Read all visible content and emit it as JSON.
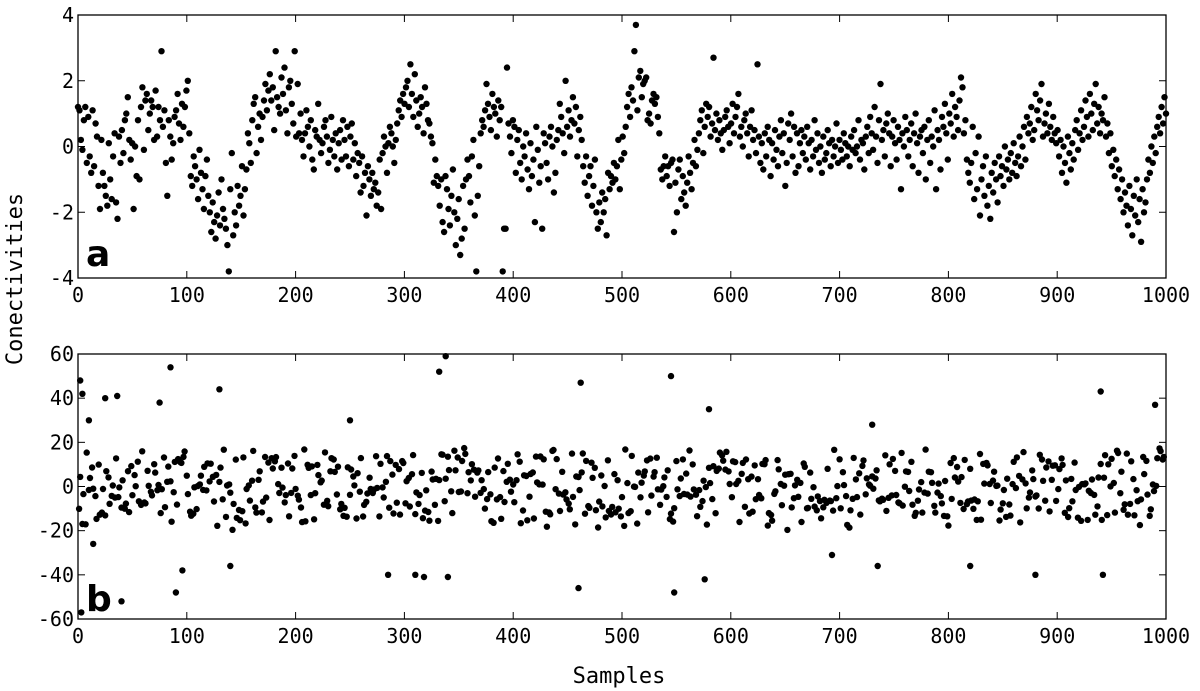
{
  "figure": {
    "ylabel": "Conectivities",
    "xlabel": "Samples"
  },
  "chart_data": [
    {
      "type": "scatter",
      "panel_label": "a",
      "xlim": [
        0,
        1000
      ],
      "ylim": [
        -4,
        4
      ],
      "x_ticks": [
        0,
        100,
        200,
        300,
        400,
        500,
        600,
        700,
        800,
        900,
        1000
      ],
      "y_ticks": [
        -4,
        -2,
        0,
        2,
        4
      ],
      "x_tick_labels": [
        "0",
        "100",
        "200",
        "300",
        "400",
        "500",
        "600",
        "700",
        "800",
        "900",
        "1000"
      ],
      "y_tick_labels": [
        "-4",
        "-2",
        "0",
        "2",
        "4"
      ],
      "grid": false,
      "marker_color": "#000000",
      "n_points": 1000,
      "points_y": [
        1.2,
        1.1,
        0.2,
        -0.1,
        0.8,
        1.2,
        -0.5,
        0.9,
        -0.3,
        -0.8,
        1.1,
        -0.6,
        0.7,
        0.3,
        -1.2,
        -1.9,
        0.2,
        -0.8,
        -1.2,
        -1.5,
        -1.8,
        0.1,
        -1.0,
        -1.6,
        -0.3,
        0.4,
        -1.7,
        -2.2,
        0.3,
        -0.5,
        0.5,
        -0.2,
        0.8,
        1.0,
        1.5,
        0.2,
        -0.4,
        0.1,
        -1.9,
        0.0,
        -0.9,
        0.8,
        -1.0,
        1.2,
        1.8,
        -0.1,
        1.4,
        1.6,
        0.5,
        1.0,
        1.4,
        1.2,
        0.2,
        1.7,
        0.3,
        1.2,
        0.8,
        2.9,
        0.6,
        1.1,
        -0.5,
        -1.5,
        0.8,
        0.3,
        -0.4,
        0.1,
        0.9,
        1.1,
        1.6,
        0.7,
        0.2,
        1.3,
        0.6,
        1.2,
        1.7,
        2.0,
        0.4,
        -0.9,
        -1.2,
        -0.3,
        -0.6,
        -1.0,
        -1.6,
        -0.1,
        -0.8,
        -1.3,
        -1.9,
        -0.9,
        -0.4,
        -1.5,
        -2.0,
        -2.6,
        -1.7,
        -2.3,
        -2.8,
        -2.1,
        -1.4,
        -2.4,
        -1.0,
        -1.9,
        -2.2,
        -2.5,
        -3.0,
        -3.8,
        -1.3,
        -0.2,
        -2.7,
        -2.0,
        -2.4,
        -1.2,
        -1.8,
        -1.5,
        -0.6,
        -2.1,
        -1.3,
        -0.7,
        0.4,
        0.1,
        -0.5,
        0.8,
        1.3,
        1.5,
        -0.2,
        0.6,
        1.0,
        0.2,
        0.9,
        1.4,
        1.9,
        1.1,
        1.7,
        2.2,
        1.4,
        1.8,
        0.5,
        2.9,
        1.5,
        1.2,
        1.0,
        2.1,
        1.6,
        2.4,
        1.1,
        0.4,
        1.8,
        2.0,
        1.3,
        0.7,
        2.9,
        0.3,
        1.9,
        0.4,
        1.0,
        0.2,
        -0.3,
        0.4,
        1.1,
        0.6,
        0.0,
        0.8,
        -0.4,
        -0.7,
        0.5,
        0.3,
        1.3,
        0.2,
        -0.2,
        0.1,
        0.6,
        0.8,
        0.3,
        -0.5,
        -0.1,
        0.9,
        0.2,
        -0.3,
        0.4,
        -0.7,
        0.1,
        0.5,
        -0.4,
        0.8,
        0.2,
        -0.3,
        0.6,
        -0.6,
        0.3,
        0.7,
        -0.4,
        0.1,
        -0.9,
        -0.2,
        -0.5,
        -1.4,
        -0.3,
        -1.2,
        -0.8,
        -2.1,
        -0.6,
        -1.0,
        -1.5,
        -0.8,
        -1.3,
        -1.1,
        -1.8,
        -1.4,
        -0.4,
        -1.9,
        -0.2,
        0.3,
        0.0,
        -0.8,
        0.1,
        0.6,
        0.4,
        0.0,
        -0.5,
        0.2,
        0.7,
        1.1,
        1.4,
        0.9,
        1.6,
        1.3,
        1.8,
        2.0,
        1.2,
        2.5,
        1.6,
        0.9,
        2.2,
        1.4,
        0.6,
        1.0,
        1.5,
        1.2,
        0.4,
        1.8,
        1.3,
        0.8,
        0.7,
        0.3,
        0.1,
        -1.1,
        -0.4,
        -0.9,
        -1.2,
        -1.8,
        -1.0,
        -2.3,
        -2.6,
        -0.9,
        -1.3,
        -1.9,
        -2.4,
        -1.5,
        -0.7,
        -2.0,
        -3.0,
        -2.2,
        -1.6,
        -3.3,
        -2.8,
        -1.2,
        -2.5,
        -1.0,
        -0.4,
        -0.9,
        -1.7,
        -0.3,
        0.2,
        -2.1,
        -3.8,
        -1.5,
        -0.6,
        0.4,
        0.8,
        0.6,
        1.1,
        1.9,
        1.3,
        0.9,
        0.5,
        1.6,
        1.2,
        1.0,
        0.3,
        1.4,
        0.8,
        1.2,
        -3.8,
        -2.5,
        -2.5,
        2.4,
        0.7,
        0.3,
        -0.2,
        0.8,
        0.6,
        -0.8,
        0.2,
        0.5,
        -0.5,
        -1.0,
        0.0,
        -0.3,
        0.4,
        -0.7,
        -1.3,
        0.1,
        -0.9,
        -0.4,
        -2.3,
        0.6,
        -0.1,
        -1.1,
        -0.6,
        -2.5,
        0.4,
        0.1,
        -0.5,
        -1.0,
        0.3,
        0.6,
        0.0,
        -1.4,
        -0.8,
        0.2,
        0.5,
        1.3,
        0.9,
        0.4,
        -0.2,
        2.0,
        0.6,
        1.1,
        0.3,
        0.8,
        1.5,
        0.7,
        1.2,
        -0.3,
        0.5,
        0.9,
        0.2,
        -0.6,
        -1.1,
        -0.3,
        -1.5,
        -0.9,
        -0.6,
        -1.8,
        -1.2,
        -0.4,
        -2.0,
        -2.5,
        -1.7,
        -2.3,
        -1.4,
        -2.0,
        -1.6,
        -2.7,
        -0.8,
        -1.3,
        -0.9,
        -1.1,
        -0.5,
        -1.0,
        -0.6,
        0.2,
        -1.3,
        -0.4,
        0.3,
        -0.2,
        0.6,
        1.2,
        1.6,
        0.9,
        1.8,
        1.4,
        2.9,
        3.7,
        1.1,
        2.1,
        2.3,
        1.5,
        1.9,
        2.0,
        2.1,
        0.8,
        1.0,
        0.7,
        1.4,
        1.6,
        1.3,
        1.5,
        0.9,
        0.4,
        -0.7,
        -1.0,
        -0.6,
        -0.3,
        -0.9,
        -0.6,
        -1.2,
        -0.5,
        -0.4,
        -2.6,
        -1.1,
        -2.0,
        -0.7,
        -0.4,
        -1.6,
        -0.9,
        -1.4,
        -1.8,
        -1.1,
        -0.3,
        -0.8,
        -1.3,
        -0.5,
        0.2,
        -0.6,
        -0.1,
        0.4,
        0.8,
        1.1,
        -0.2,
        0.6,
        1.3,
        0.9,
        1.2,
        0.3,
        0.7,
        2.7,
        0.5,
        1.0,
        0.2,
        0.8,
        0.4,
        -0.1,
        0.5,
        0.9,
        1.1,
        0.6,
        0.1,
        0.7,
        1.3,
        0.4,
        0.9,
        1.2,
        1.6,
        0.3,
        0.6,
        0.0,
        0.8,
        1.0,
        0.4,
        -0.3,
        0.6,
        1.1,
        0.2,
        0.5,
        -0.2,
        2.5,
        0.3,
        -0.5,
        0.1,
        -0.7,
        0.4,
        -0.3,
        0.6,
        0.2,
        -0.9,
        0.1,
        -0.4,
        0.5,
        -0.1,
        -0.6,
        0.3,
        0.8,
        -0.2,
        0.4,
        -1.2,
        -0.5,
        0.7,
        0.2,
        1.0,
        -0.3,
        0.6,
        -0.8,
        0.4,
        -0.6,
        0.1,
        0.5,
        -0.2,
        0.3,
        -0.4,
        0.6,
        0.1,
        -0.7,
        0.2,
        -0.3,
        0.8,
        -0.1,
        0.4,
        -0.5,
        0.0,
        -0.8,
        0.3,
        -0.4,
        -0.2,
        0.5,
        0.1,
        -0.6,
        0.2,
        -0.3,
        0.0,
        0.7,
        -0.5,
        0.2,
        -0.1,
        -0.4,
        0.4,
        0.1,
        -0.3,
        0.0,
        -0.6,
        0.3,
        -0.1,
        0.5,
        -0.2,
        0.0,
        0.8,
        -0.4,
        0.2,
        0.1,
        -0.7,
        0.3,
        0.6,
        -0.2,
        0.9,
        0.4,
        -0.1,
        1.2,
        0.3,
        -0.5,
        0.8,
        1.9,
        0.2,
        0.5,
        -0.3,
        0.7,
        1.0,
        0.4,
        -0.6,
        0.3,
        0.8,
        0.1,
        -0.4,
        0.6,
        0.2,
        -1.3,
        0.4,
        0.0,
        0.9,
        0.5,
        -0.3,
        0.2,
        0.7,
        -0.6,
        0.4,
        1.0,
        0.1,
        -0.8,
        0.3,
        0.5,
        -0.2,
        0.6,
        -1.0,
        0.2,
        0.8,
        -0.5,
        0.3,
        0.0,
        1.1,
        -1.3,
        0.5,
        0.2,
        -0.7,
        0.9,
        0.6,
        1.3,
        0.4,
        -0.4,
        1.0,
        0.7,
        1.6,
        0.3,
        1.2,
        0.9,
        0.5,
        1.4,
        2.1,
        1.8,
        0.4,
        0.8,
        -0.4,
        -0.8,
        -1.1,
        -0.5,
        0.6,
        -1.6,
        -0.2,
        -1.3,
        0.3,
        -2.1,
        -1.0,
        -0.6,
        -1.5,
        -0.3,
        -1.8,
        -1.2,
        -2.2,
        -0.8,
        -1.4,
        -0.5,
        -1.0,
        -1.7,
        -0.3,
        -0.9,
        -0.6,
        -1.2,
        0.0,
        -0.7,
        -0.4,
        -1.0,
        -0.2,
        -0.8,
        0.1,
        -0.5,
        -0.9,
        -0.3,
        0.3,
        -0.6,
        0.0,
        0.6,
        -0.4,
        0.9,
        0.4,
        0.7,
        1.2,
        0.2,
        0.5,
        1.6,
        1.1,
        0.8,
        1.4,
        1.9,
        0.3,
        0.7,
        1.0,
        0.4,
        1.3,
        0.6,
        0.2,
        0.9,
        0.4,
        0.1,
        0.5,
        -0.3,
        0.2,
        -0.8,
        0.0,
        -0.5,
        -1.1,
        0.3,
        -0.2,
        -0.7,
        0.1,
        -0.4,
        0.5,
        0.8,
        -0.1,
        0.4,
        1.1,
        0.2,
        0.6,
        1.4,
        0.9,
        0.3,
        1.6,
        1.0,
        0.5,
        1.3,
        1.9,
        0.7,
        1.2,
        0.4,
        1.0,
        0.8,
        1.5,
        0.3,
        0.7,
        -0.2,
        0.4,
        -0.6,
        -0.1,
        -0.9,
        -0.4,
        -1.3,
        -0.7,
        -1.6,
        -1.0,
        -2.0,
        -1.4,
        -1.8,
        -2.4,
        -1.2,
        -1.9,
        -2.7,
        -1.5,
        -2.1,
        -1.0,
        -2.3,
        -1.6,
        -2.9,
        -1.3,
        -2.0,
        -1.7,
        -1.0,
        -0.4,
        -0.8,
        0.0,
        -0.5,
        0.3,
        -0.2,
        0.6,
        0.9,
        0.4,
        1.2,
        0.7,
        1.5,
        1.0
      ]
    },
    {
      "type": "scatter",
      "panel_label": "b",
      "xlim": [
        0,
        1000
      ],
      "ylim": [
        -60,
        60
      ],
      "x_ticks": [
        0,
        100,
        200,
        300,
        400,
        500,
        600,
        700,
        800,
        900,
        1000
      ],
      "y_ticks": [
        -60,
        -40,
        -20,
        0,
        20,
        40,
        60
      ],
      "x_tick_labels": [
        "0",
        "100",
        "200",
        "300",
        "400",
        "500",
        "600",
        "700",
        "800",
        "900",
        "1000"
      ],
      "y_tick_labels": [
        "-60",
        "-40",
        "-20",
        "0",
        "20",
        "40",
        "60"
      ],
      "grid": false,
      "marker_color": "#000000",
      "n_points": 1000,
      "noise_amplitude": 20,
      "outlier_points": [
        [
          2,
          48
        ],
        [
          3,
          -57
        ],
        [
          4,
          42
        ],
        [
          10,
          30
        ],
        [
          14,
          -26
        ],
        [
          25,
          40
        ],
        [
          36,
          41
        ],
        [
          40,
          -52
        ],
        [
          75,
          38
        ],
        [
          85,
          54
        ],
        [
          90,
          -48
        ],
        [
          96,
          -38
        ],
        [
          130,
          44
        ],
        [
          140,
          -36
        ],
        [
          250,
          30
        ],
        [
          285,
          -40
        ],
        [
          310,
          -40
        ],
        [
          318,
          -41
        ],
        [
          332,
          52
        ],
        [
          338,
          59
        ],
        [
          340,
          -41
        ],
        [
          460,
          -46
        ],
        [
          462,
          47
        ],
        [
          545,
          50
        ],
        [
          548,
          -48
        ],
        [
          576,
          -42
        ],
        [
          580,
          35
        ],
        [
          693,
          -31
        ],
        [
          730,
          28
        ],
        [
          735,
          -36
        ],
        [
          820,
          -36
        ],
        [
          880,
          -40
        ],
        [
          940,
          43
        ],
        [
          942,
          -40
        ],
        [
          990,
          37
        ]
      ]
    }
  ]
}
